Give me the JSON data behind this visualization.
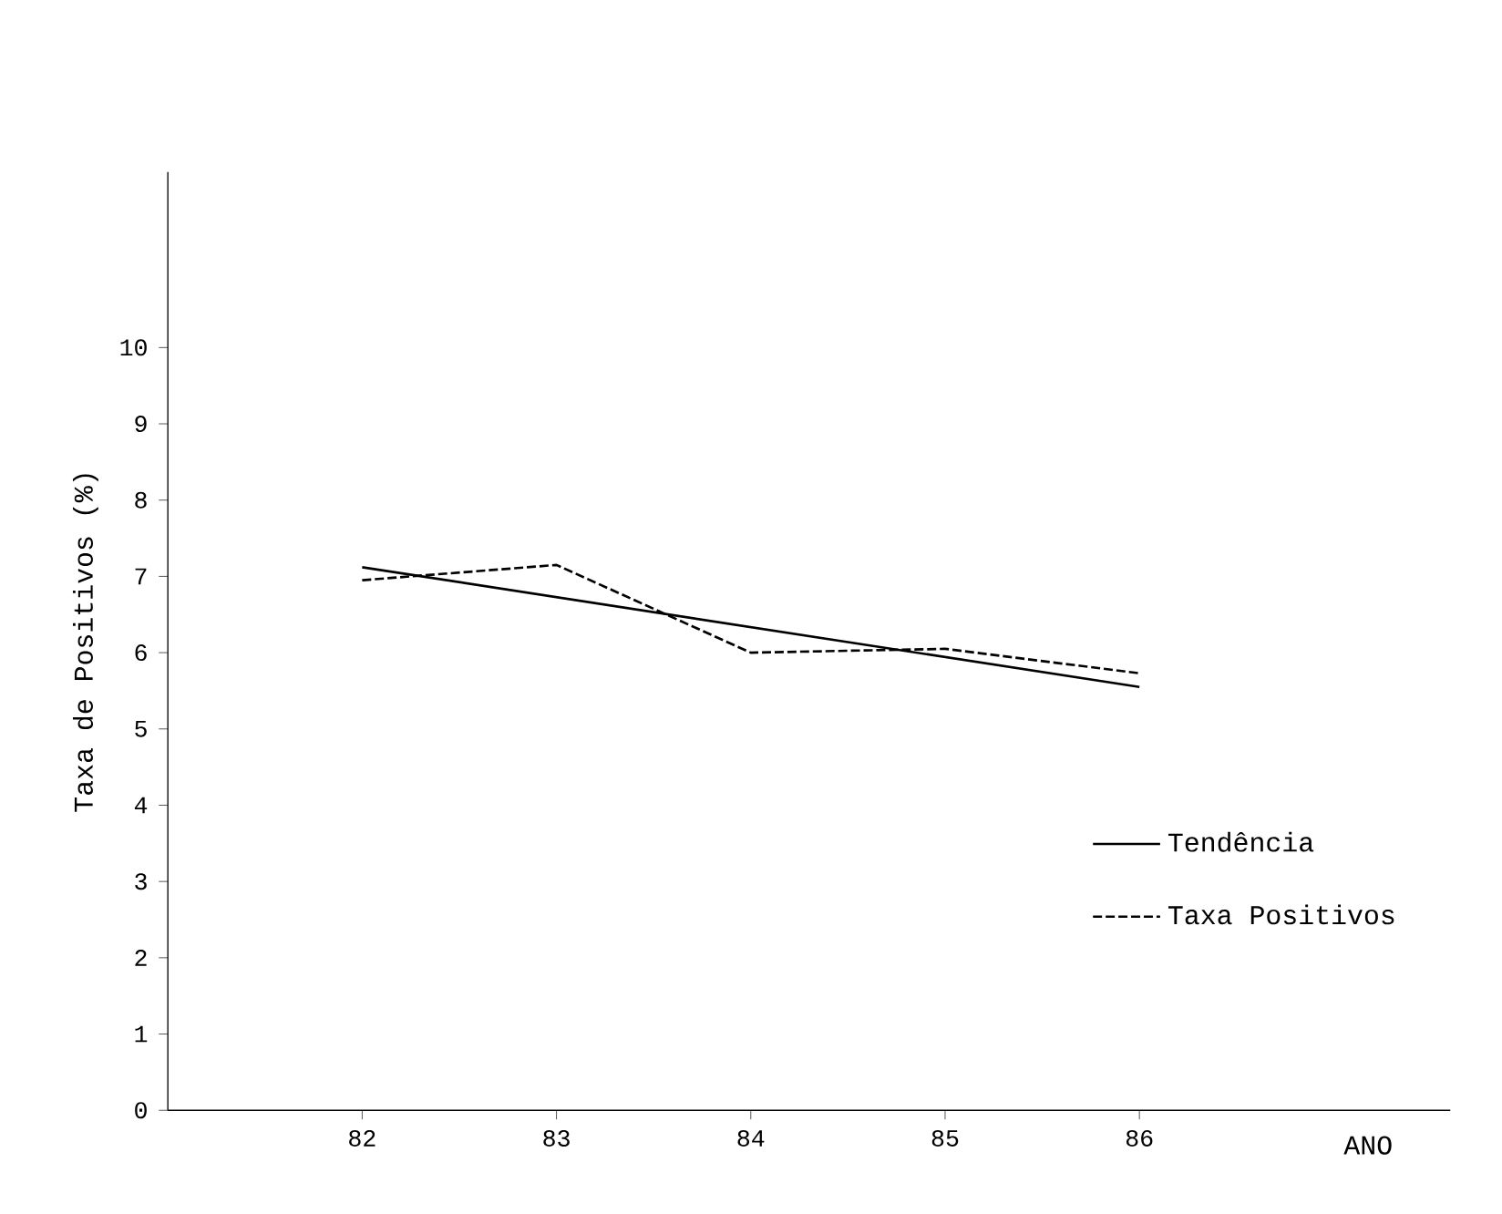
{
  "chart_data": {
    "type": "line",
    "xlabel": "ANO",
    "ylabel": "Taxa de Positivos (%)",
    "x": [
      82,
      83,
      84,
      85,
      86
    ],
    "series": [
      {
        "name": "Tendência",
        "color": "#000000",
        "line_style": "solid",
        "values": [
          7.12,
          null,
          null,
          null,
          5.55
        ]
      },
      {
        "name": "Taxa Positivos",
        "color": "#000000",
        "line_style": "dashed",
        "values": [
          6.95,
          7.15,
          6.0,
          6.05,
          5.73
        ]
      }
    ],
    "xlim": [
      81,
      87.6
    ],
    "ylim": [
      0,
      12.3
    ],
    "xticks": [
      82,
      83,
      84,
      85,
      86
    ],
    "yticks": [
      0,
      1,
      2,
      3,
      4,
      5,
      6,
      7,
      8,
      9,
      10
    ],
    "legend": "bottom right",
    "grid": false,
    "marker": "none"
  }
}
